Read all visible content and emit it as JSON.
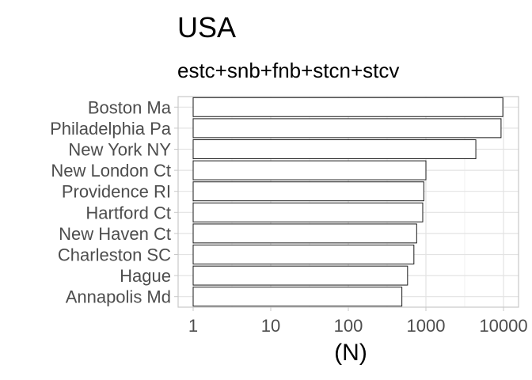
{
  "chart_data": {
    "type": "bar",
    "orientation": "horizontal",
    "title": "USA",
    "subtitle": "estc+snb+fnb+stcn+stcv",
    "xlabel": "(N)",
    "ylabel": "",
    "x_scale": "log10",
    "xlim": [
      1,
      10000
    ],
    "x_ticks": [
      "1",
      "10",
      "100",
      "1000",
      "10000"
    ],
    "grid": true,
    "categories": [
      "Boston Ma",
      "Philadelphia Pa",
      "New York NY",
      "New London Ct",
      "Providence RI",
      "Hartford Ct",
      "New Haven Ct",
      "Charleston SC",
      "Hague",
      "Annapolis Md"
    ],
    "values": [
      9800,
      9300,
      4400,
      1000,
      940,
      910,
      760,
      700,
      580,
      490
    ],
    "colors": {
      "bar_fill": "#ffffff",
      "bar_stroke": "#1a1a1a",
      "grid": "#e3e3e3",
      "panel_border": "#c8c8c8"
    }
  }
}
